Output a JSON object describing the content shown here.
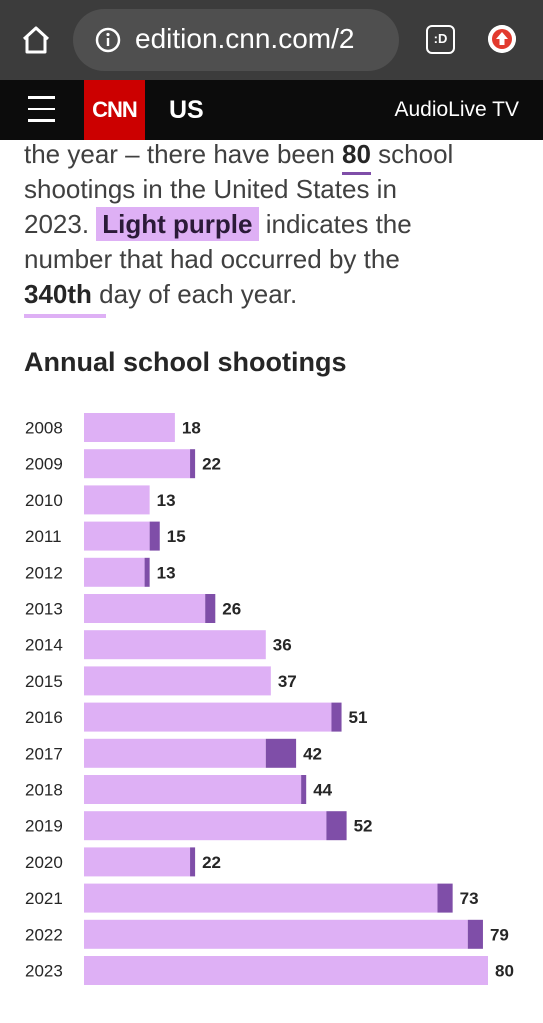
{
  "browser": {
    "url": "edition.cnn.com/2",
    "tab_label": ":D",
    "icons": [
      "home-icon",
      "info-icon",
      "tabs-icon",
      "extension-icon"
    ]
  },
  "nav": {
    "logo": "CNN",
    "section": "US",
    "right_label": "AudioLive TV",
    "icons": [
      "menu-icon"
    ]
  },
  "article": {
    "lines": [
      {
        "pre": "the year – there have been ",
        "num": "80",
        "post": " school"
      },
      {
        "text": "shootings in the United States in"
      },
      {
        "pre": "2023. ",
        "highlight": "Light purple",
        "post": " indicates the"
      },
      {
        "text": "number that had occurred by the"
      },
      {
        "day": "340th",
        "post": " day of each year."
      }
    ]
  },
  "colors": {
    "by_day_340": "#deb0f5",
    "rest_of_year": "#7f4ea8",
    "label_text": "#262626"
  },
  "chart_data": {
    "type": "bar",
    "orientation": "horizontal",
    "stacked": true,
    "title": "Annual school shootings",
    "categories": [
      "2008",
      "2009",
      "2010",
      "2011",
      "2012",
      "2013",
      "2014",
      "2015",
      "2016",
      "2017",
      "2018",
      "2019",
      "2020",
      "2021",
      "2022",
      "2023"
    ],
    "totals": [
      18,
      22,
      13,
      15,
      13,
      26,
      36,
      37,
      51,
      42,
      44,
      52,
      22,
      73,
      79,
      80
    ],
    "series": [
      {
        "color": "#deb0f5",
        "values": [
          18,
          21,
          13,
          13,
          12,
          24,
          36,
          37,
          49,
          36,
          43,
          48,
          21,
          70,
          76,
          80
        ]
      },
      {
        "color": "#7f4ea8",
        "values": [
          0,
          1,
          0,
          2,
          1,
          2,
          0,
          0,
          2,
          6,
          1,
          4,
          1,
          3,
          3,
          0
        ]
      }
    ],
    "xlim": [
      0,
      80
    ],
    "grid": false,
    "legend": "none"
  }
}
